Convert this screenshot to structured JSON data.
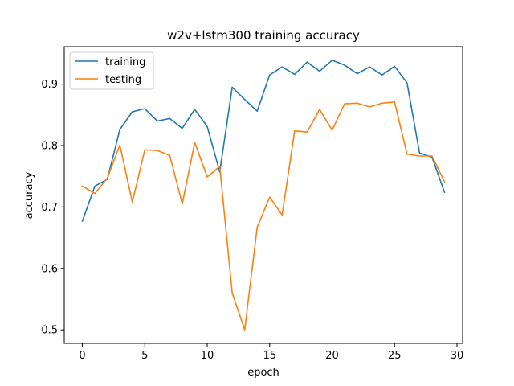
{
  "chart_data": {
    "type": "line",
    "title": "w2v+lstm300 training accuracy",
    "xlabel": "epoch",
    "ylabel": "accuracy",
    "xlim": [
      -1.45,
      30.45
    ],
    "ylim": [
      0.478,
      0.961
    ],
    "xticks": [
      0,
      5,
      10,
      15,
      20,
      25,
      30
    ],
    "yticks": [
      0.5,
      0.6,
      0.7,
      0.8,
      0.9
    ],
    "ytick_labels": [
      "0.5",
      "0.6",
      "0.7",
      "0.8",
      "0.9"
    ],
    "legend_position": "upper left",
    "grid": false,
    "x": [
      0,
      1,
      2,
      3,
      4,
      5,
      6,
      7,
      8,
      9,
      10,
      11,
      12,
      13,
      14,
      15,
      16,
      17,
      18,
      19,
      20,
      21,
      22,
      23,
      24,
      25,
      26,
      27,
      28,
      29
    ],
    "series": [
      {
        "name": "training",
        "color": "#1f77b4",
        "values": [
          0.677,
          0.734,
          0.745,
          0.826,
          0.855,
          0.86,
          0.84,
          0.844,
          0.828,
          0.859,
          0.831,
          0.757,
          0.895,
          0.875,
          0.856,
          0.915,
          0.928,
          0.916,
          0.936,
          0.921,
          0.939,
          0.931,
          0.917,
          0.928,
          0.915,
          0.929,
          0.902,
          0.788,
          0.781,
          0.724
        ]
      },
      {
        "name": "testing",
        "color": "#ff7f0e",
        "values": [
          0.734,
          0.722,
          0.747,
          0.801,
          0.708,
          0.793,
          0.792,
          0.784,
          0.705,
          0.805,
          0.749,
          0.766,
          0.56,
          0.5,
          0.667,
          0.716,
          0.687,
          0.824,
          0.822,
          0.859,
          0.825,
          0.868,
          0.869,
          0.863,
          0.869,
          0.871,
          0.786,
          0.783,
          0.783,
          0.741
        ]
      }
    ]
  }
}
